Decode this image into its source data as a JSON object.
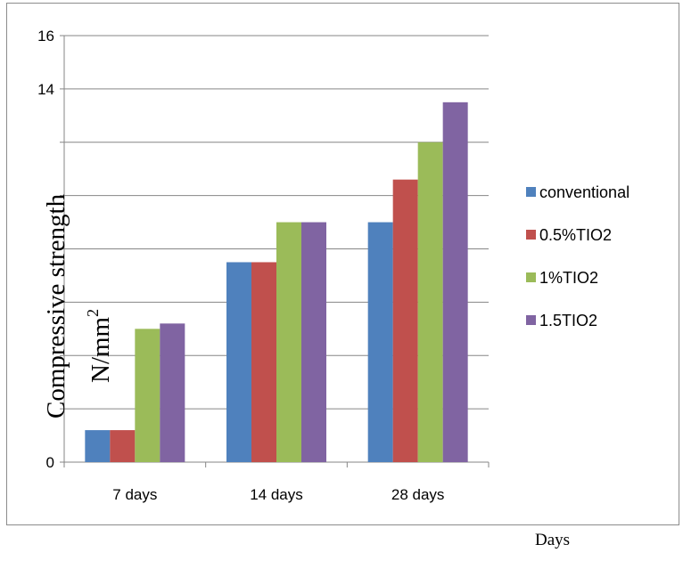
{
  "chart_data": {
    "type": "bar",
    "categories": [
      "7 days",
      "14 days",
      "28 days"
    ],
    "series": [
      {
        "name": "conventional",
        "color": "#4f81bd",
        "values": [
          1.2,
          7.5,
          9.0
        ]
      },
      {
        "name": "0.5%TIO2",
        "color": "#c0504d",
        "values": [
          1.2,
          7.5,
          10.6
        ]
      },
      {
        "name": "1%TIO2",
        "color": "#9bbb59",
        "values": [
          5.0,
          9.0,
          12.0
        ]
      },
      {
        "name": "1.5TIO2",
        "color": "#8064a2",
        "values": [
          5.2,
          9.0,
          13.5
        ]
      }
    ],
    "ylim": [
      0,
      16
    ],
    "yticks": [
      "0",
      "14",
      "16"
    ],
    "ytick_values": [
      0,
      14,
      16
    ],
    "grid_values": [
      2,
      4,
      6,
      8,
      10,
      12,
      14,
      16
    ],
    "ylabel": "Compressive strength",
    "ylabel_unit": "N/mm",
    "ylabel_unit_sup": "2",
    "xlabel": "Days",
    "legend_position": "right",
    "grid": true
  }
}
